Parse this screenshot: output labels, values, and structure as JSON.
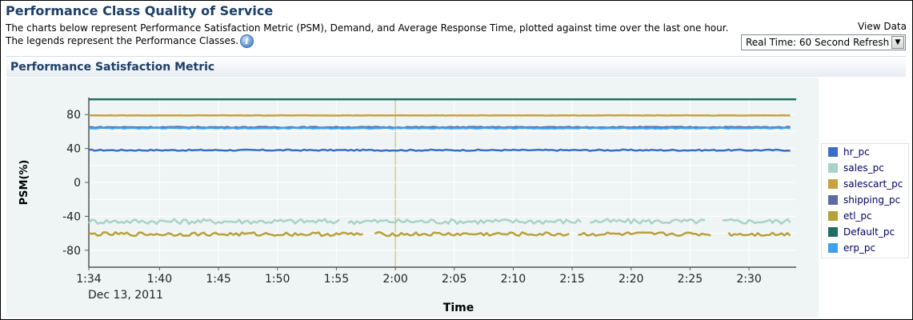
{
  "header": {
    "title": "Performance Class Quality of Service",
    "description_line1": "The charts below represent Performance Satisfaction Metric (PSM), Demand, and Average Response Time, plotted against time over the last one hour.",
    "description_line2": "The legends represent the Performance Classes.",
    "info_icon": "info-icon"
  },
  "view_data": {
    "label": "View Data",
    "selected": "Real Time: 60 Second Refresh"
  },
  "section": {
    "title": "Performance Satisfaction Metric"
  },
  "chart_data": {
    "type": "line",
    "xlabel": "Time",
    "ylabel": "PSM(%)",
    "x_ticks": [
      "1:34",
      "1:40",
      "1:45",
      "1:50",
      "1:55",
      "2:00",
      "2:05",
      "2:10",
      "2:15",
      "2:20",
      "2:25",
      "2:30"
    ],
    "x_date_label": "Dec 13, 2011",
    "y_ticks": [
      80,
      40,
      0,
      -40,
      -80
    ],
    "ylim": [
      -100,
      100
    ],
    "xlim": [
      "1:34",
      "2:34"
    ],
    "grid": true,
    "legend_position": "right",
    "series": [
      {
        "name": "hr_pc",
        "color": "#3b6dc7",
        "level": 38
      },
      {
        "name": "sales_pc",
        "color": "#a9d2c8",
        "level": -46
      },
      {
        "name": "salescart_pc",
        "color": "#c9a240",
        "level": 79
      },
      {
        "name": "shipping_pc",
        "color": "#5d6aa6",
        "level": 65
      },
      {
        "name": "etl_pc",
        "color": "#b8a03a",
        "level": -61
      },
      {
        "name": "Default_pc",
        "color": "#1f6e60",
        "level": 98
      },
      {
        "name": "erp_pc",
        "color": "#3fa0ee",
        "level": 64
      }
    ]
  }
}
